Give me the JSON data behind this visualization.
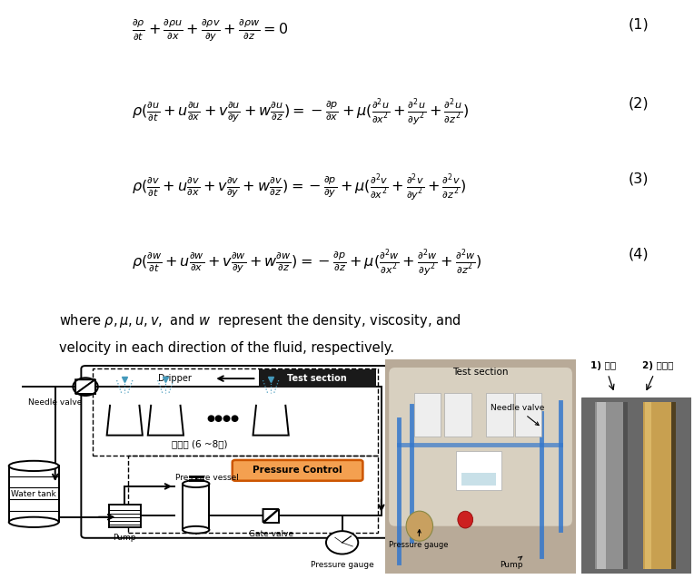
{
  "bg_color": "#ffffff",
  "fig_width": 7.64,
  "fig_height": 6.38,
  "eq1": "$\\frac{\\partial \\rho}{\\partial t} + \\frac{\\partial \\rho u}{\\partial x} + \\frac{\\partial \\rho v}{\\partial y} + \\frac{\\partial \\rho w}{\\partial z} = 0$",
  "eq1_num": "(1)",
  "eq2": "$\\rho(\\frac{\\partial u}{\\partial t} + u\\frac{\\partial u}{\\partial x} + v\\frac{\\partial u}{\\partial y} + w\\frac{\\partial u}{\\partial z}) = -\\frac{\\partial p}{\\partial x} + \\mu(\\frac{\\partial^2 u}{\\partial x^2} + \\frac{\\partial^2 u}{\\partial y^2} + \\frac{\\partial^2 u}{\\partial z^2})$",
  "eq2_num": "(2)",
  "eq3": "$\\rho(\\frac{\\partial v}{\\partial t} + u\\frac{\\partial v}{\\partial x} + v\\frac{\\partial v}{\\partial y} + w\\frac{\\partial v}{\\partial z}) = -\\frac{\\partial p}{\\partial y} + \\mu(\\frac{\\partial^2 v}{\\partial x^2} + \\frac{\\partial^2 v}{\\partial y^2} + \\frac{\\partial^2 v}{\\partial z^2})$",
  "eq3_num": "(3)",
  "eq4": "$\\rho(\\frac{\\partial w}{\\partial t} + u\\frac{\\partial w}{\\partial x} + v\\frac{\\partial w}{\\partial y} + w\\frac{\\partial w}{\\partial z}) = -\\frac{\\partial p}{\\partial z} + \\mu(\\frac{\\partial^2 w}{\\partial x^2} + \\frac{\\partial^2 w}{\\partial y^2} + \\frac{\\partial^2 w}{\\partial z^2})$",
  "eq4_num": "(4)",
  "desc_line1": "where $\\rho,\\mu,u,v,$ and $w$  represent the density, viscosity, and",
  "desc_line2": "velocity in each direction of the fluid, respectively.",
  "label_test_section": "Test section",
  "label_dripper": "Dripper",
  "label_needle_valve": "Needle valve",
  "label_beaker": "비이커 (6 ~8개)",
  "label_pressure_control": "Pressure Control",
  "label_pressure_vessel": "Pressure vessel",
  "label_pump": "Pump",
  "label_gate_valve": "Gate valve",
  "label_water_tank": "Water tank",
  "label_pressure_gauge": "Pressure gauge",
  "photo_label_test": "Test section",
  "photo_label_needle": "Needle valve",
  "photo_label_pgauge": "Pressure gauge",
  "photo_label_pump": "Pump",
  "sample_label1": "1) 남경",
  "sample_label2": "2) 네타핀",
  "pressure_control_bg": "#f4a050",
  "test_section_box_bg": "#1a1a1a",
  "photo_bg": "#b8aa98",
  "photo_bg2": "#c8bfb0",
  "sample_bg": "#787878",
  "rod1_color": "#909090",
  "rod1_highlight": "#cccccc",
  "rod2_color": "#c8a050",
  "rod_bg": "#686868"
}
